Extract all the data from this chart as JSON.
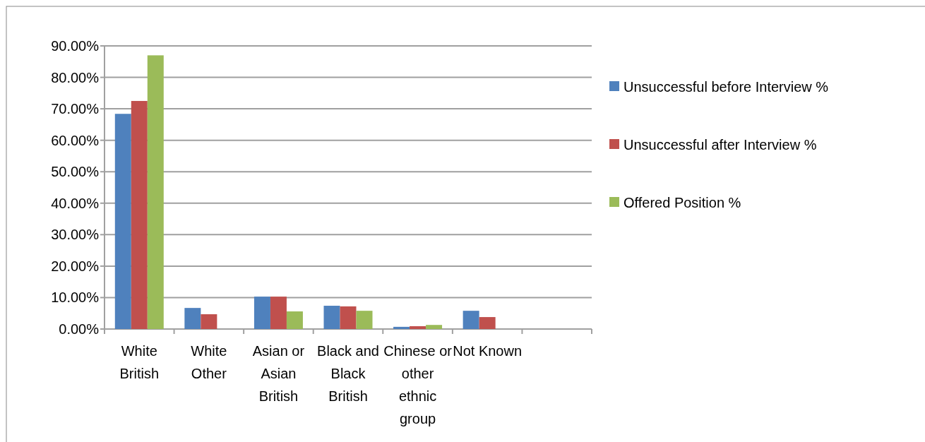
{
  "chart_data": {
    "type": "bar",
    "categories": [
      "White British",
      "White Other",
      "Asian or Asian British",
      "Black and Black British",
      "Chinese or other ethnic group",
      "Not Known",
      null
    ],
    "series": [
      {
        "name": "Unsuccessful before Interview %",
        "color": "#4f81bd",
        "values": [
          68.4,
          6.7,
          10.3,
          7.4,
          0.7,
          5.8,
          null
        ]
      },
      {
        "name": "Unsuccessful after Interview %",
        "color": "#c0504d",
        "values": [
          72.5,
          4.7,
          10.3,
          7.2,
          0.9,
          3.8,
          null
        ]
      },
      {
        "name": "Offered Position %",
        "color": "#9bbb59",
        "values": [
          87,
          0,
          5.6,
          5.8,
          1.3,
          0,
          null
        ]
      }
    ],
    "ylim": [
      0,
      90
    ],
    "yticks": [
      {
        "value": 0,
        "label": "0.00%"
      },
      {
        "value": 10,
        "label": "10.00%"
      },
      {
        "value": 20,
        "label": "20.00%"
      },
      {
        "value": 30,
        "label": "30.00%"
      },
      {
        "value": 40,
        "label": "40.00%"
      },
      {
        "value": 50,
        "label": "50.00%"
      },
      {
        "value": 60,
        "label": "60.00%"
      },
      {
        "value": 70,
        "label": "70.00%"
      },
      {
        "value": 80,
        "label": "80.00%"
      },
      {
        "value": 90,
        "label": "90.00%"
      }
    ],
    "grid": "y",
    "legend": "right"
  }
}
